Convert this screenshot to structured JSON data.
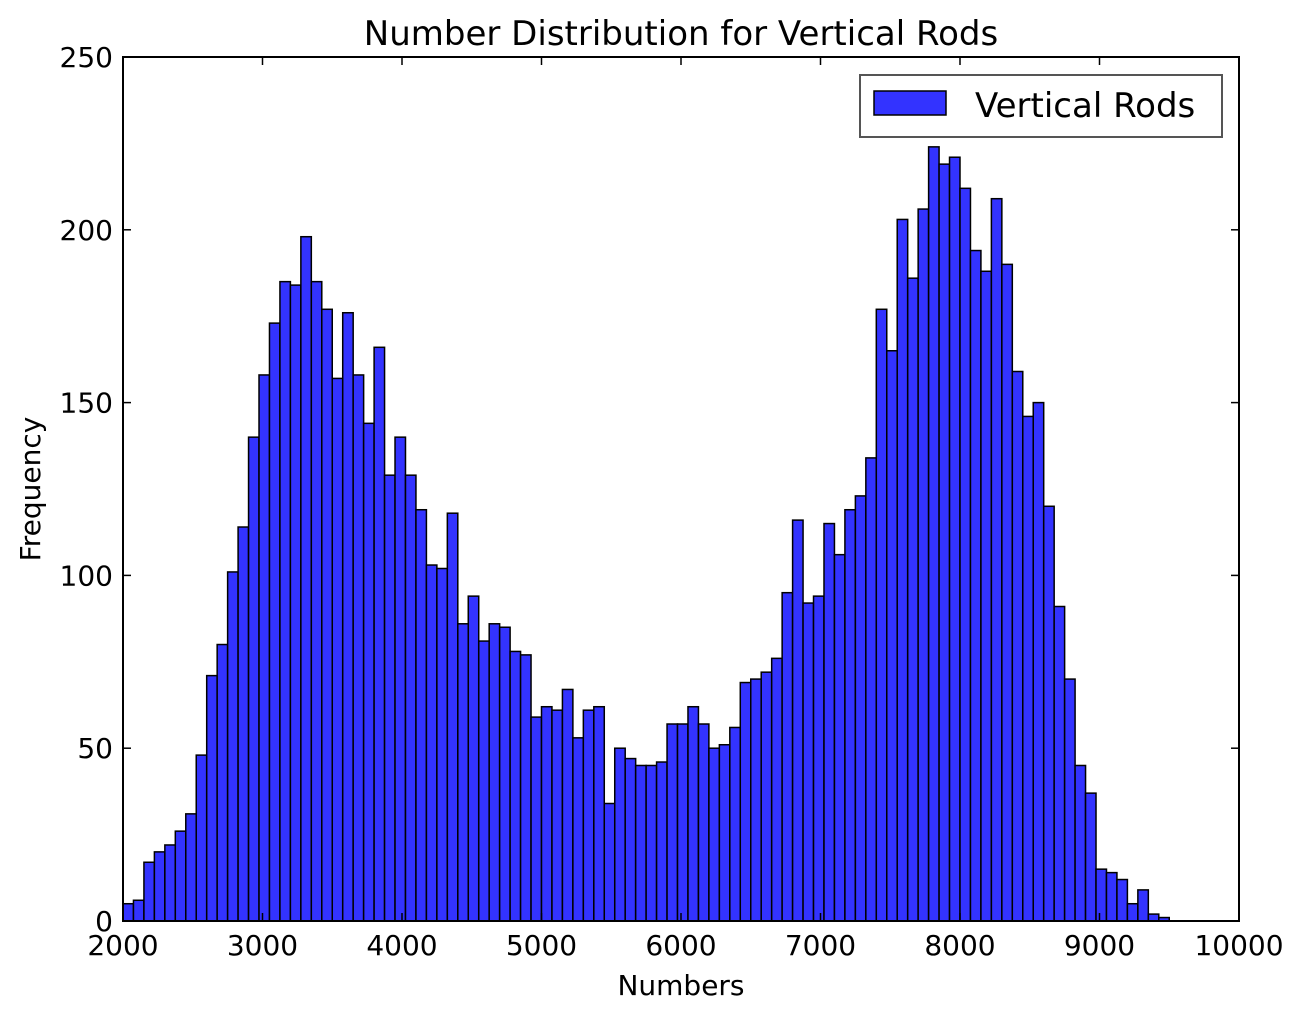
{
  "chart_data": {
    "type": "bar",
    "title": "Number Distribution for Vertical Rods",
    "xlabel": "Numbers",
    "ylabel": "Frequency",
    "xlim": [
      2000,
      10000
    ],
    "ylim": [
      0,
      250
    ],
    "xticks": [
      2000,
      3000,
      4000,
      5000,
      6000,
      7000,
      8000,
      9000,
      10000
    ],
    "yticks": [
      0,
      50,
      100,
      150,
      200,
      250
    ],
    "bin_start": 2000,
    "bin_width": 75,
    "legend": {
      "label": "Vertical Rods",
      "position": "top-right"
    },
    "bar_color": "#3333ff",
    "edge_color": "#000000",
    "values": [
      5,
      6,
      17,
      20,
      22,
      26,
      31,
      48,
      71,
      80,
      101,
      114,
      140,
      158,
      173,
      185,
      184,
      198,
      185,
      177,
      157,
      176,
      158,
      144,
      166,
      129,
      140,
      129,
      119,
      103,
      102,
      118,
      86,
      94,
      81,
      86,
      85,
      78,
      77,
      59,
      62,
      61,
      67,
      53,
      61,
      62,
      34,
      50,
      47,
      45,
      45,
      46,
      57,
      57,
      62,
      57,
      50,
      51,
      56,
      69,
      70,
      72,
      76,
      95,
      116,
      92,
      94,
      115,
      106,
      119,
      123,
      134,
      177,
      165,
      203,
      186,
      206,
      224,
      219,
      221,
      212,
      194,
      188,
      209,
      190,
      159,
      146,
      150,
      120,
      91,
      70,
      45,
      37,
      15,
      14,
      12,
      5,
      9,
      2,
      1
    ]
  }
}
